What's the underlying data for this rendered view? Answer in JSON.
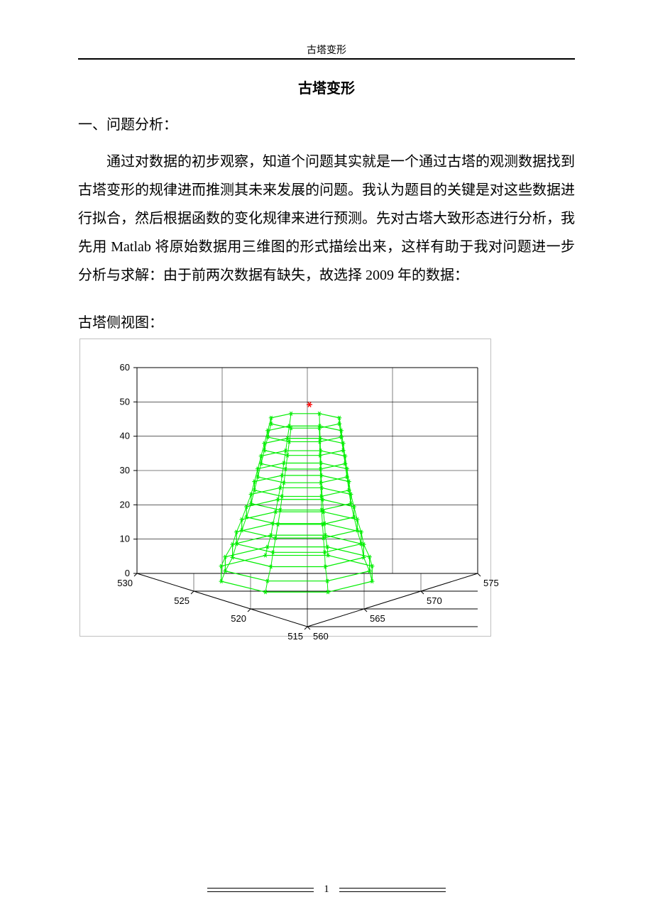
{
  "header": {
    "running_title": "古塔变形"
  },
  "title": "古塔变形",
  "section1": {
    "heading": "一、问题分析：",
    "body": "通过对数据的初步观察，知道个问题其实就是一个通过古塔的观测数据找到古塔变形的规律进而推测其未来发展的问题。我认为题目的关键是对这些数据进行拟合，然后根据函数的变化规律来进行预测。先对古塔大致形态进行分析，我先用 Matlab 将原始数据用三维图的形式描绘出来，这样有助于我对问题进一步分析与求解：由于前两次数据有缺失，故选择 2009 年的数据："
  },
  "figure": {
    "caption": "古塔侧视图：",
    "z_ticks": [
      0,
      10,
      20,
      30,
      40,
      50,
      60
    ],
    "x_ticks": [
      530,
      525,
      520,
      515
    ],
    "y_ticks": [
      560,
      565,
      570,
      575
    ],
    "line_color": "#00ee00",
    "marker_color": "#00ee00",
    "top_marker_color": "#ff0000",
    "axis_color": "#000000",
    "grid_color": "#000000",
    "background_color": "#ffffff",
    "tick_fontsize": 13,
    "layers": [
      {
        "z": 1,
        "rx": 115,
        "ry": 28,
        "cx_off": 0,
        "cy_off": 0
      },
      {
        "z": 4,
        "rx": 110,
        "ry": 26,
        "cx_off": 1,
        "cy_off": 0
      },
      {
        "z": 8,
        "rx": 100,
        "ry": 24,
        "cx_off": 2,
        "cy_off": 0
      },
      {
        "z": 12,
        "rx": 95,
        "ry": 22,
        "cx_off": 3,
        "cy_off": 0
      },
      {
        "z": 16,
        "rx": 88,
        "ry": 20,
        "cx_off": 4,
        "cy_off": 0
      },
      {
        "z": 20,
        "rx": 82,
        "ry": 19,
        "cx_off": 5,
        "cy_off": 0
      },
      {
        "z": 24,
        "rx": 76,
        "ry": 17,
        "cx_off": 6,
        "cy_off": 0
      },
      {
        "z": 28,
        "rx": 72,
        "ry": 16,
        "cx_off": 7,
        "cy_off": 0
      },
      {
        "z": 32,
        "rx": 68,
        "ry": 15,
        "cx_off": 8,
        "cy_off": 0
      },
      {
        "z": 36,
        "rx": 64,
        "ry": 14,
        "cx_off": 9,
        "cy_off": 0
      },
      {
        "z": 40,
        "rx": 60,
        "ry": 13,
        "cx_off": 10,
        "cy_off": 0
      },
      {
        "z": 44,
        "rx": 56,
        "ry": 12,
        "cx_off": 11,
        "cy_off": 0
      },
      {
        "z": 48,
        "rx": 52,
        "ry": 11,
        "cx_off": 12,
        "cy_off": 0
      }
    ],
    "top_point": {
      "z": 53,
      "cx_off": 18
    },
    "markers_per_layer": 8
  },
  "footer": {
    "page_number": "1"
  }
}
